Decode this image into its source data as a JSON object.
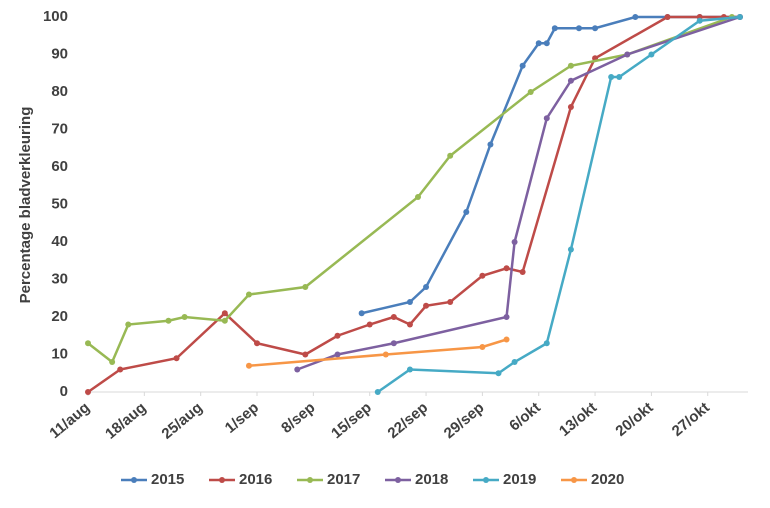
{
  "chart_data": {
    "type": "line",
    "ylabel": "Percentage bladverkleuring",
    "xlim": [
      223,
      305
    ],
    "ylim": [
      0,
      100
    ],
    "xticks": [
      {
        "value": 223,
        "label": "11/aug"
      },
      {
        "value": 230,
        "label": "18/aug"
      },
      {
        "value": 237,
        "label": "25/aug"
      },
      {
        "value": 244,
        "label": "1/sep"
      },
      {
        "value": 251,
        "label": "8/sep"
      },
      {
        "value": 258,
        "label": "15/sep"
      },
      {
        "value": 265,
        "label": "22/sep"
      },
      {
        "value": 272,
        "label": "29/sep"
      },
      {
        "value": 279,
        "label": "6/okt"
      },
      {
        "value": 286,
        "label": "13/okt"
      },
      {
        "value": 293,
        "label": "20/okt"
      },
      {
        "value": 300,
        "label": "27/okt"
      }
    ],
    "yticks": [
      0,
      10,
      20,
      30,
      40,
      50,
      60,
      70,
      80,
      90,
      100
    ],
    "legend": "bottom",
    "series": [
      {
        "name": "2015",
        "color": "#4a7ebb",
        "x": [
          257,
          263,
          265,
          270,
          273,
          277,
          279,
          280,
          281,
          284,
          286,
          291,
          295,
          299,
          304
        ],
        "values": [
          21,
          24,
          28,
          48,
          66,
          87,
          93,
          93,
          97,
          97,
          97,
          100,
          100,
          100,
          100
        ]
      },
      {
        "name": "2016",
        "color": "#be4b48",
        "x": [
          223,
          227,
          234,
          240,
          244,
          250,
          254,
          258,
          261,
          263,
          265,
          268,
          272,
          275,
          277,
          283,
          286,
          295,
          299,
          302,
          304
        ],
        "values": [
          0,
          6,
          9,
          21,
          13,
          10,
          15,
          18,
          20,
          18,
          23,
          24,
          31,
          33,
          32,
          76,
          89,
          100,
          100,
          100,
          100
        ]
      },
      {
        "name": "2017",
        "color": "#98b954",
        "x": [
          223,
          226,
          228,
          233,
          235,
          240,
          243,
          250,
          264,
          268,
          278,
          283,
          290,
          303
        ],
        "values": [
          13,
          8,
          18,
          19,
          20,
          19,
          26,
          28,
          52,
          63,
          80,
          87,
          90,
          100
        ]
      },
      {
        "name": "2018",
        "color": "#7d60a0",
        "x": [
          249,
          254,
          261,
          275,
          276,
          280,
          283,
          290,
          304
        ],
        "values": [
          6,
          10,
          13,
          20,
          40,
          73,
          83,
          90,
          100
        ]
      },
      {
        "name": "2019",
        "color": "#46aac5",
        "x": [
          259,
          263,
          274,
          276,
          280,
          283,
          288,
          289,
          293,
          299,
          304
        ],
        "values": [
          0,
          6,
          5,
          8,
          13,
          38,
          84,
          84,
          90,
          99,
          100
        ]
      },
      {
        "name": "2020",
        "color": "#f79646",
        "x": [
          243,
          260,
          272,
          275
        ],
        "values": [
          7,
          10,
          12,
          14
        ]
      }
    ]
  }
}
